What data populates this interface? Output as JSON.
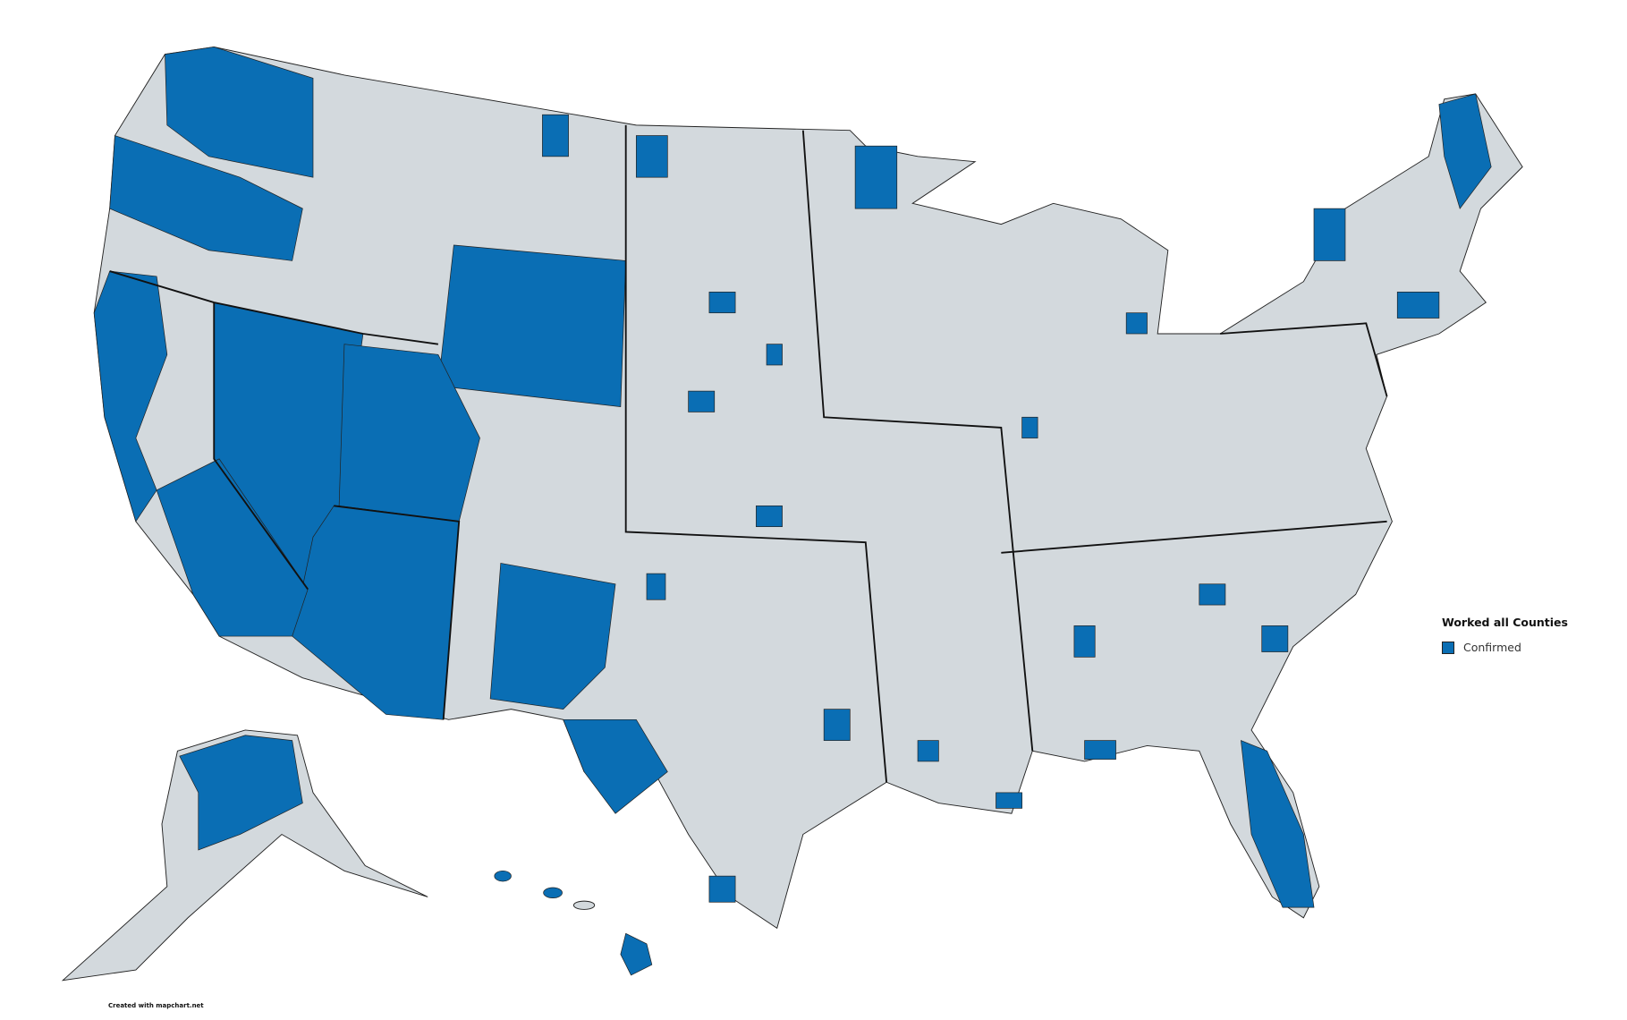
{
  "legend": {
    "title": "Worked all Counties",
    "items": [
      {
        "label": "Confirmed",
        "color": "#0a6eb4"
      }
    ]
  },
  "colors": {
    "confirmed": "#0a6eb4",
    "unconfirmed": "#d3d9dd",
    "background": "#ffffff"
  },
  "credit": "Created with mapchart.net"
}
